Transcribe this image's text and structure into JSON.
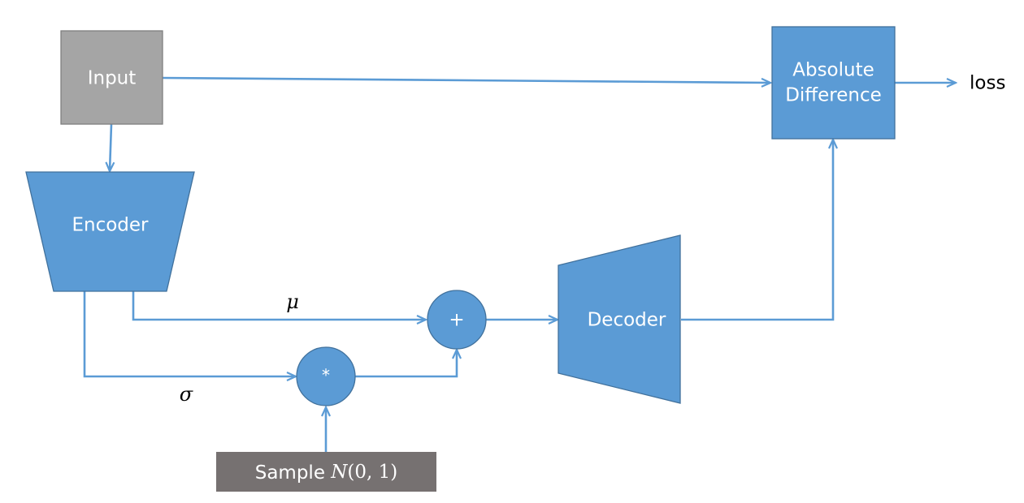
{
  "nodes": {
    "input": {
      "label": "Input"
    },
    "encoder": {
      "label": "Encoder"
    },
    "decoder": {
      "label": "Decoder"
    },
    "absdiff": {
      "line1": "Absolute",
      "line2": "Difference"
    },
    "plus": {
      "label": "+"
    },
    "times": {
      "label": "*"
    },
    "sample": {
      "prefix": "Sample ",
      "dist": "N",
      "args": "(0, 1)"
    }
  },
  "edge_labels": {
    "mu": "μ",
    "sigma": "σ"
  },
  "output": {
    "label": "loss"
  },
  "colors": {
    "blue": "#5b9bd5",
    "border": "#41719c",
    "input_gray": "#a5a5a5",
    "sample_gray": "#767171",
    "arrow": "#5b9bd5"
  }
}
